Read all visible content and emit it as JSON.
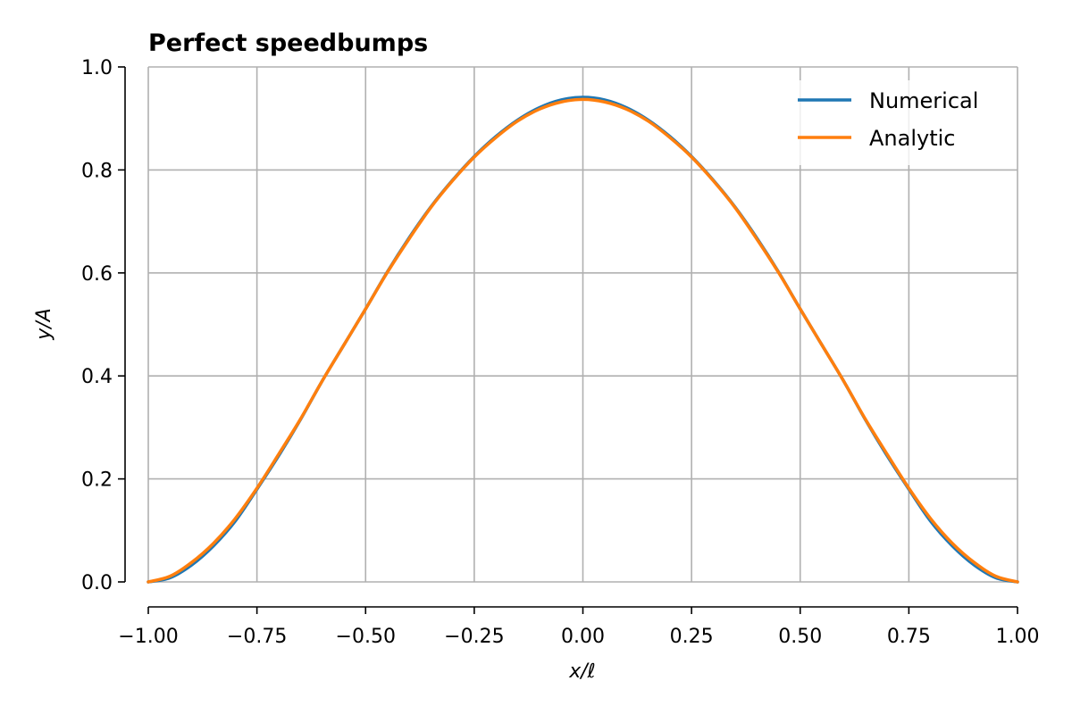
{
  "chart_data": {
    "type": "line",
    "title": "Perfect speedbumps",
    "xlabel": "x/ℓ",
    "ylabel": "y/A",
    "xlim": [
      -1.0,
      1.0
    ],
    "ylim": [
      0.0,
      1.0
    ],
    "x_ticks": [
      -1.0,
      -0.75,
      -0.5,
      -0.25,
      0.0,
      0.25,
      0.5,
      0.75,
      1.0
    ],
    "x_tick_labels": [
      "−1.00",
      "−0.75",
      "−0.50",
      "−0.25",
      "0.00",
      "0.25",
      "0.50",
      "0.75",
      "1.00"
    ],
    "y_ticks": [
      0.0,
      0.2,
      0.4,
      0.6,
      0.8,
      1.0
    ],
    "y_tick_labels": [
      "0.0",
      "0.2",
      "0.4",
      "0.6",
      "0.8",
      "1.0"
    ],
    "grid": true,
    "legend_position": "top-right",
    "series": [
      {
        "name": "Numerical",
        "color": "#1f77b4",
        "x": [
          -1.0,
          -0.95,
          -0.9,
          -0.85,
          -0.8,
          -0.75,
          -0.7,
          -0.65,
          -0.6,
          -0.55,
          -0.5,
          -0.45,
          -0.4,
          -0.35,
          -0.3,
          -0.25,
          -0.2,
          -0.15,
          -0.1,
          -0.05,
          0.0,
          0.05,
          0.1,
          0.15,
          0.2,
          0.25,
          0.3,
          0.35,
          0.4,
          0.45,
          0.5,
          0.55,
          0.6,
          0.65,
          0.7,
          0.75,
          0.8,
          0.85,
          0.9,
          0.95,
          1.0
        ],
        "y": [
          0.0,
          0.008,
          0.033,
          0.07,
          0.118,
          0.18,
          0.245,
          0.315,
          0.39,
          0.46,
          0.53,
          0.602,
          0.668,
          0.728,
          0.78,
          0.826,
          0.865,
          0.897,
          0.921,
          0.936,
          0.941,
          0.936,
          0.921,
          0.897,
          0.865,
          0.826,
          0.78,
          0.728,
          0.668,
          0.602,
          0.53,
          0.46,
          0.39,
          0.315,
          0.245,
          0.18,
          0.118,
          0.07,
          0.033,
          0.008,
          0.0
        ]
      },
      {
        "name": "Analytic",
        "color": "#ff7f0e",
        "x": [
          -1.0,
          -0.95,
          -0.9,
          -0.85,
          -0.8,
          -0.75,
          -0.7,
          -0.65,
          -0.6,
          -0.55,
          -0.5,
          -0.45,
          -0.4,
          -0.35,
          -0.3,
          -0.25,
          -0.2,
          -0.15,
          -0.1,
          -0.05,
          0.0,
          0.05,
          0.1,
          0.15,
          0.2,
          0.25,
          0.3,
          0.35,
          0.4,
          0.45,
          0.5,
          0.55,
          0.6,
          0.65,
          0.7,
          0.75,
          0.8,
          0.85,
          0.9,
          0.95,
          1.0
        ],
        "y": [
          0.0,
          0.011,
          0.038,
          0.075,
          0.123,
          0.182,
          0.248,
          0.316,
          0.39,
          0.46,
          0.53,
          0.601,
          0.666,
          0.727,
          0.779,
          0.825,
          0.863,
          0.895,
          0.918,
          0.932,
          0.937,
          0.932,
          0.918,
          0.895,
          0.863,
          0.825,
          0.779,
          0.727,
          0.666,
          0.601,
          0.53,
          0.46,
          0.39,
          0.316,
          0.248,
          0.182,
          0.123,
          0.075,
          0.038,
          0.011,
          0.0
        ]
      }
    ]
  },
  "styles": {
    "grid_color": "#b0b0b0",
    "axis_color": "#000000",
    "legend_background": "#ffffff"
  }
}
